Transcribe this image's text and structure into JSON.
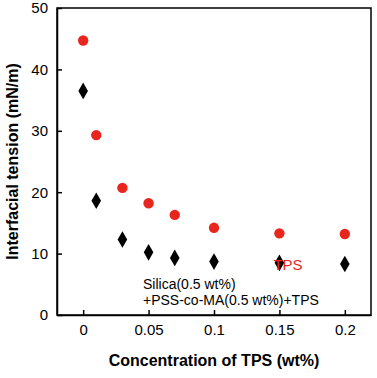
{
  "chart_data": {
    "type": "scatter",
    "x_label": "Concentration of TPS (wt%)",
    "y_label": "Interfacial tension (mN/m)",
    "x": [
      0,
      0.01,
      0.03,
      0.05,
      0.07,
      0.1,
      0.15,
      0.2
    ],
    "series": [
      {
        "name": "TPS",
        "color": "#e8261e",
        "marker": "circle",
        "values": [
          44.7,
          29.3,
          20.7,
          18.2,
          16.3,
          14.2,
          13.3,
          13.2
        ]
      },
      {
        "name": "Silica(0.5 wt%)\n+PSS-co-MA(0.5 wt%)+TPS",
        "color": "#000000",
        "marker": "diamond",
        "values": [
          36.5,
          18.6,
          12.3,
          10.2,
          9.3,
          8.7,
          8.5,
          8.3
        ]
      }
    ],
    "xlim": [
      -0.02,
      0.22
    ],
    "xticks": [
      0,
      0.05,
      0.1,
      0.15,
      0.2
    ],
    "ylim": [
      0,
      50
    ],
    "yticks": [
      0,
      10,
      20,
      30,
      40,
      50
    ],
    "grid": false
  }
}
